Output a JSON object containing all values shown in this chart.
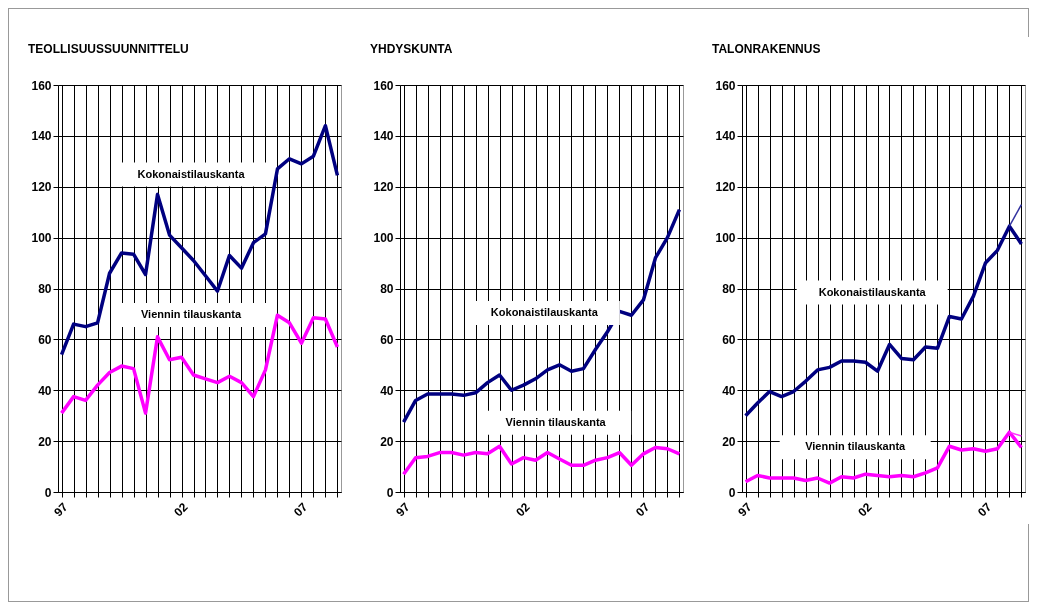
{
  "chart_data": [
    {
      "type": "line",
      "title": "TEOLLISUUSSUUNNITTELU",
      "categories": [
        "97",
        null,
        null,
        null,
        null,
        null,
        null,
        null,
        null,
        null,
        "02",
        null,
        null,
        null,
        null,
        null,
        null,
        null,
        null,
        null,
        "07",
        null,
        null,
        null
      ],
      "ylim": [
        0,
        160
      ],
      "yticks": [
        0,
        20,
        40,
        60,
        80,
        100,
        120,
        140,
        160
      ],
      "grid": true,
      "legend": false,
      "series": [
        {
          "name": "Kokonaistilauskanta",
          "color": "#000080",
          "values": [
            54,
            66,
            65,
            66.5,
            86,
            94,
            93.5,
            85.5,
            117,
            101,
            96,
            91,
            85,
            79,
            93,
            88,
            98,
            101.5,
            127,
            131,
            129,
            132,
            144,
            124.5
          ]
        },
        {
          "name": "Viennin tilauskanta",
          "color": "#ff00ff",
          "values": [
            31,
            37.5,
            36,
            42,
            47,
            49.5,
            48.5,
            31,
            61,
            52,
            53,
            46,
            44.5,
            43,
            45.5,
            43,
            37.5,
            48,
            69.5,
            66.5,
            58.5,
            68.5,
            68,
            57
          ]
        }
      ]
    },
    {
      "type": "line",
      "title": "YHDYSKUNTA",
      "categories": [
        "97",
        null,
        null,
        null,
        null,
        null,
        null,
        null,
        null,
        null,
        "02",
        null,
        null,
        null,
        null,
        null,
        null,
        null,
        null,
        null,
        "07",
        null,
        null,
        null
      ],
      "ylim": [
        0,
        160
      ],
      "yticks": [
        0,
        20,
        40,
        60,
        80,
        100,
        120,
        140,
        160
      ],
      "grid": true,
      "legend": false,
      "series": [
        {
          "name": "Kokonaistilauskanta",
          "color": "#000080",
          "values": [
            27.5,
            36,
            38.5,
            38.5,
            38.5,
            38,
            39,
            43,
            46,
            40,
            42,
            44.5,
            48,
            50,
            47.5,
            48.5,
            56,
            63,
            71,
            69.5,
            75.5,
            92,
            100,
            111
          ]
        },
        {
          "name": "Viennin tilauskanta",
          "color": "#ff00ff",
          "values": [
            7,
            13.5,
            14,
            15.5,
            15.5,
            14.5,
            15.5,
            15,
            18,
            11,
            13.5,
            12.5,
            15.5,
            13,
            10.5,
            10.5,
            12.5,
            13.5,
            15.5,
            10.5,
            15,
            17.5,
            17,
            15
          ]
        }
      ]
    },
    {
      "type": "line",
      "title": "TALONRAKENNUS",
      "categories": [
        "97",
        null,
        null,
        null,
        null,
        null,
        null,
        null,
        null,
        null,
        "02",
        null,
        null,
        null,
        null,
        null,
        null,
        null,
        null,
        null,
        "07",
        null,
        null,
        null
      ],
      "ylim": [
        0,
        160
      ],
      "yticks": [
        0,
        20,
        40,
        60,
        80,
        100,
        120,
        140,
        160
      ],
      "grid": true,
      "legend": false,
      "series": [
        {
          "name": "Kokonaistilauskanta",
          "color": "#000080",
          "values": [
            30,
            35,
            39.5,
            37.5,
            39.5,
            43.5,
            48,
            49,
            51.5,
            51.5,
            51,
            47.5,
            58,
            52.5,
            52,
            57,
            56.5,
            69,
            68,
            77,
            90,
            95,
            104.5,
            97.5
          ]
        },
        {
          "name": "Viennin tilauskanta",
          "color": "#ff00ff",
          "values": [
            4,
            6.5,
            5.5,
            5.5,
            5.5,
            4.5,
            5.5,
            3.5,
            6,
            5.5,
            7,
            6.5,
            6,
            6.5,
            6,
            7.5,
            9.5,
            18,
            16.5,
            17,
            16,
            17,
            23.5,
            17.5
          ]
        },
        {
          "color": "#3333a0",
          "values": [
            null,
            null,
            null,
            null,
            null,
            null,
            null,
            null,
            null,
            null,
            null,
            null,
            null,
            null,
            null,
            null,
            null,
            null,
            null,
            null,
            null,
            null,
            104.5,
            113
          ]
        },
        {
          "color": "#ff33ff",
          "values": [
            null,
            null,
            null,
            null,
            null,
            null,
            null,
            null,
            null,
            null,
            null,
            null,
            null,
            null,
            null,
            null,
            null,
            null,
            null,
            null,
            null,
            null,
            23.5,
            22
          ]
        }
      ]
    }
  ]
}
